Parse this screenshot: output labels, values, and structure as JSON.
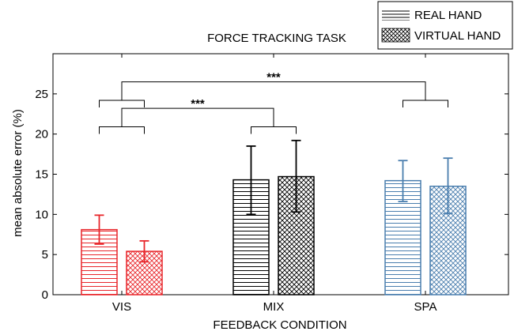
{
  "chart_data": {
    "type": "bar",
    "title": "FORCE TRACKING TASK",
    "xlabel": "FEEDBACK CONDITION",
    "ylabel": "mean absolute error (%)",
    "ylim": [
      0,
      30
    ],
    "yticks": [
      0,
      5,
      10,
      15,
      20,
      25
    ],
    "categories": [
      "VIS",
      "MIX",
      "SPA"
    ],
    "category_colors": [
      "#e8262b",
      "#000000",
      "#4a7eae"
    ],
    "series": [
      {
        "name": "REAL HAND",
        "pattern": "horizontal-stripes",
        "values": [
          8.1,
          14.3,
          14.2
        ],
        "err_low": [
          6.3,
          10.0,
          11.6
        ],
        "err_high": [
          9.9,
          18.5,
          16.7
        ]
      },
      {
        "name": "VIRTUAL HAND",
        "pattern": "crosshatch",
        "values": [
          5.4,
          14.7,
          13.5
        ],
        "err_low": [
          4.1,
          10.3,
          10.1
        ],
        "err_high": [
          6.7,
          19.2,
          17.0
        ]
      }
    ],
    "significance": [
      {
        "label": "***",
        "from": "VIS",
        "to": "SPA",
        "bracket_y": 26.5
      },
      {
        "label": "***",
        "from": "VIS",
        "to": "MIX",
        "bracket_y": 23.2
      }
    ],
    "legend_position": "top-right",
    "grid": false
  }
}
